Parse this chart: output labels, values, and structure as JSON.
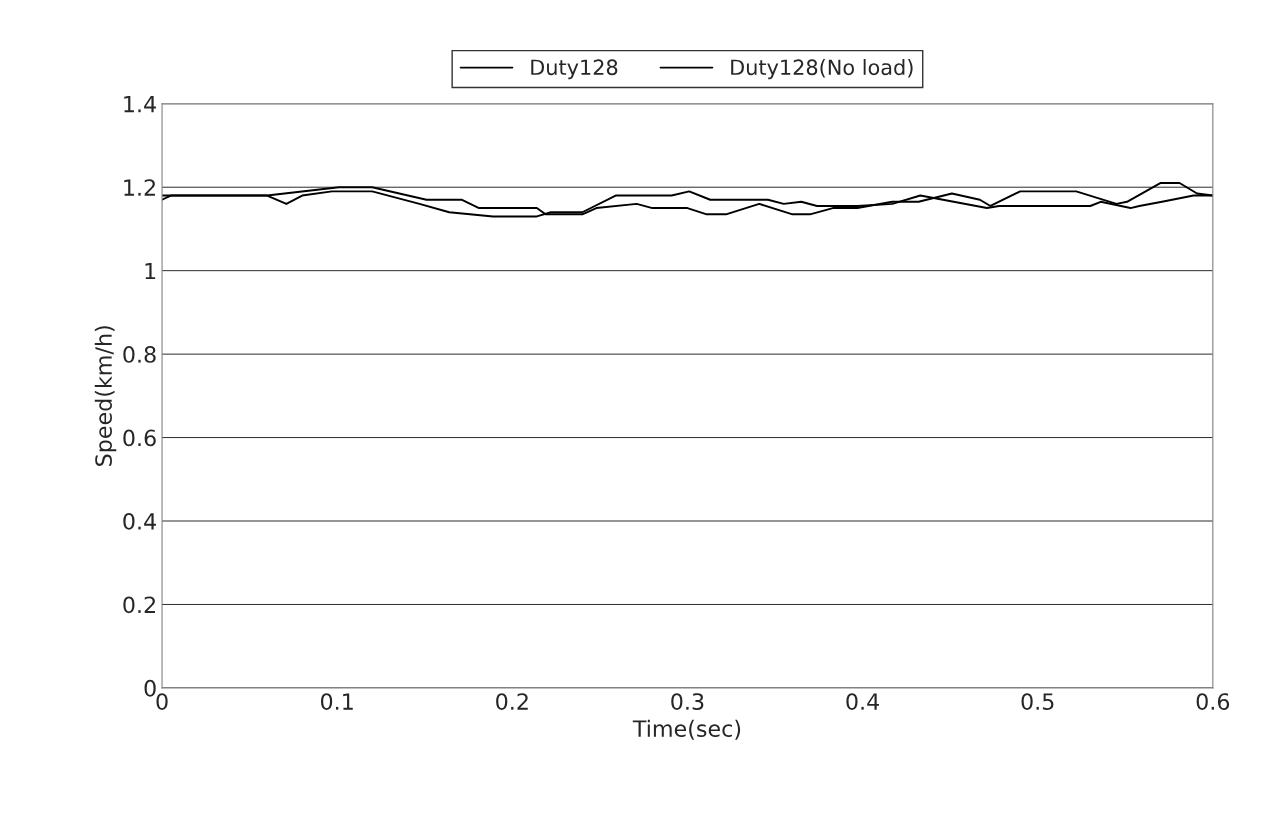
{
  "chart_data": {
    "type": "line",
    "xlabel": "Time(sec)",
    "ylabel": "Speed(km/h)",
    "xlim": [
      0,
      0.6
    ],
    "ylim": [
      0,
      1.4
    ],
    "xticks": [
      0,
      0.1,
      0.2,
      0.3,
      0.4,
      0.5,
      0.6
    ],
    "yticks": [
      0,
      0.2,
      0.4,
      0.6,
      0.8,
      1,
      1.2,
      1.4
    ],
    "grid": "y",
    "legend": "top",
    "marker": "none",
    "line_style": "solid",
    "series": [
      {
        "name": "Duty128",
        "color": "#000000",
        "x": [
          0,
          0.005,
          0.06,
          0.071,
          0.08,
          0.097,
          0.12,
          0.147,
          0.164,
          0.189,
          0.214,
          0.222,
          0.24,
          0.259,
          0.291,
          0.301,
          0.313,
          0.346,
          0.355,
          0.365,
          0.374,
          0.397,
          0.417,
          0.433,
          0.471,
          0.478,
          0.53,
          0.536,
          0.553,
          0.558,
          0.571,
          0.589,
          0.6
        ],
        "values": [
          1.17,
          1.18,
          1.18,
          1.16,
          1.18,
          1.19,
          1.19,
          1.16,
          1.14,
          1.13,
          1.13,
          1.14,
          1.14,
          1.18,
          1.18,
          1.19,
          1.17,
          1.17,
          1.16,
          1.165,
          1.155,
          1.155,
          1.16,
          1.18,
          1.15,
          1.155,
          1.155,
          1.165,
          1.15,
          1.155,
          1.165,
          1.18,
          1.18
        ]
      },
      {
        "name": "Duty128(No load)",
        "color": "#000000",
        "x": [
          0,
          0.06,
          0.101,
          0.12,
          0.151,
          0.171,
          0.181,
          0.214,
          0.219,
          0.24,
          0.248,
          0.271,
          0.28,
          0.3,
          0.311,
          0.322,
          0.341,
          0.36,
          0.37,
          0.383,
          0.397,
          0.417,
          0.432,
          0.451,
          0.467,
          0.473,
          0.49,
          0.522,
          0.545,
          0.551,
          0.57,
          0.581,
          0.591,
          0.6
        ],
        "values": [
          1.18,
          1.18,
          1.2,
          1.2,
          1.17,
          1.17,
          1.15,
          1.15,
          1.135,
          1.135,
          1.15,
          1.16,
          1.15,
          1.15,
          1.135,
          1.135,
          1.16,
          1.135,
          1.135,
          1.15,
          1.15,
          1.165,
          1.165,
          1.185,
          1.17,
          1.155,
          1.19,
          1.19,
          1.16,
          1.165,
          1.21,
          1.21,
          1.185,
          1.18
        ]
      }
    ]
  }
}
